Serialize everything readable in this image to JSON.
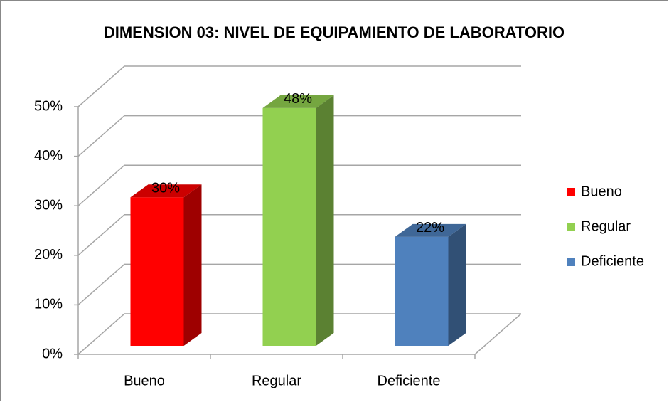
{
  "chart_data": {
    "type": "bar3d",
    "title": "DIMENSION 03: NIVEL DE EQUIPAMIENTO DE LABORATORIO",
    "categories": [
      "Bueno",
      "Regular",
      "Deficiente"
    ],
    "values": [
      30,
      48,
      22
    ],
    "value_labels": [
      "30%",
      "48%",
      "22%"
    ],
    "colors": [
      "#ff0000",
      "#92d050",
      "#4f81bd"
    ],
    "ylim": [
      0,
      50
    ],
    "yticks": [
      {
        "value": 0,
        "label": "0%"
      },
      {
        "value": 10,
        "label": "10%"
      },
      {
        "value": 20,
        "label": "20%"
      },
      {
        "value": 30,
        "label": "30%"
      },
      {
        "value": 40,
        "label": "40%"
      },
      {
        "value": 50,
        "label": "50%"
      }
    ],
    "grid": true,
    "legend": "right"
  }
}
